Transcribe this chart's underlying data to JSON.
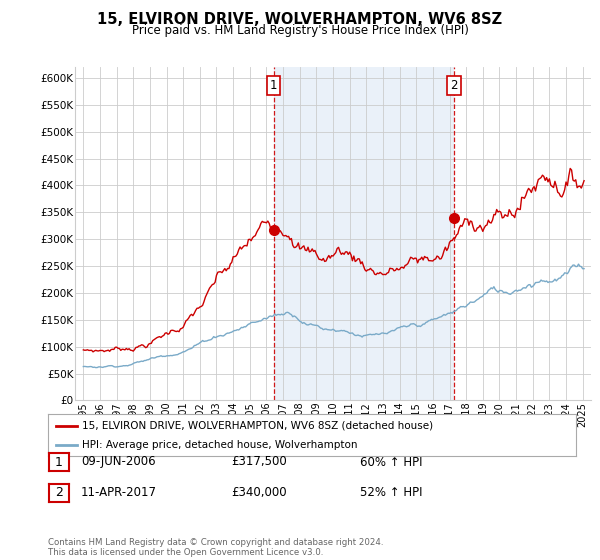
{
  "title": "15, ELVIRON DRIVE, WOLVERHAMPTON, WV6 8SZ",
  "subtitle": "Price paid vs. HM Land Registry's House Price Index (HPI)",
  "legend_line1": "15, ELVIRON DRIVE, WOLVERHAMPTON, WV6 8SZ (detached house)",
  "legend_line2": "HPI: Average price, detached house, Wolverhampton",
  "sale1_label": "1",
  "sale1_date": "09-JUN-2006",
  "sale1_price": "£317,500",
  "sale1_hpi": "60% ↑ HPI",
  "sale2_label": "2",
  "sale2_date": "11-APR-2017",
  "sale2_price": "£340,000",
  "sale2_hpi": "52% ↑ HPI",
  "footer": "Contains HM Land Registry data © Crown copyright and database right 2024.\nThis data is licensed under the Open Government Licence v3.0.",
  "red_color": "#cc0000",
  "blue_color": "#7aaac8",
  "vline_color": "#cc0000",
  "background_color": "#ffffff",
  "fill_color": "#dce9f5",
  "ylim": [
    0,
    620000
  ],
  "yticks": [
    0,
    50000,
    100000,
    150000,
    200000,
    250000,
    300000,
    350000,
    400000,
    450000,
    500000,
    550000,
    600000
  ],
  "ytick_labels": [
    "£0",
    "£50K",
    "£100K",
    "£150K",
    "£200K",
    "£250K",
    "£300K",
    "£350K",
    "£400K",
    "£450K",
    "£500K",
    "£550K",
    "£600K"
  ],
  "sale1_x": 2006.44,
  "sale2_x": 2017.28,
  "sale1_y": 317500,
  "sale2_y": 340000,
  "xmin": 1994.5,
  "xmax": 2025.5
}
